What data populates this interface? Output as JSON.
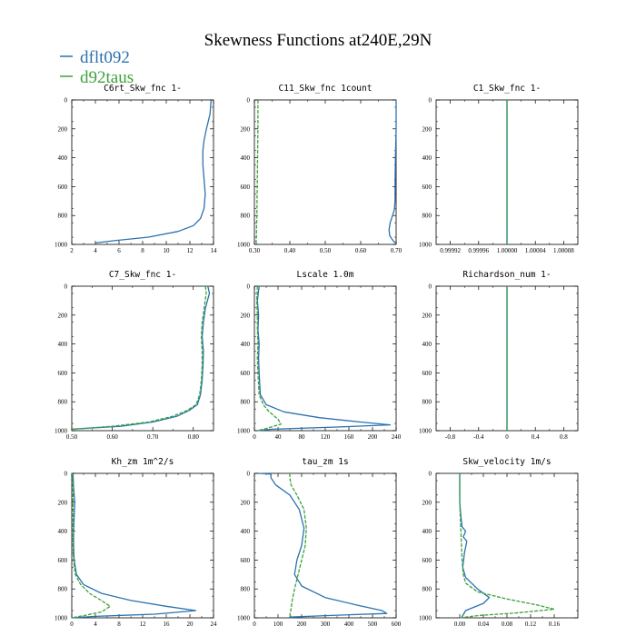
{
  "figure": {
    "title": "Skewness Functions at240E,29N",
    "legend": [
      {
        "label": "dflt092",
        "color": "#2b72b0"
      },
      {
        "label": "d92taus",
        "color": "#3aa23a"
      }
    ]
  },
  "chart_data": [
    {
      "type": "line",
      "title": "C6rt_Skw_fnc",
      "units": "1-",
      "xlim": [
        2,
        14
      ],
      "xticks": [
        2,
        4,
        6,
        8,
        10,
        12,
        14
      ],
      "ylim": [
        0,
        1000
      ],
      "yticks": [
        0,
        200,
        400,
        600,
        800,
        1000
      ],
      "series": [
        {
          "name": "dflt092",
          "x": [
            13.8,
            13.7,
            13.4,
            13.2,
            13.1,
            13.1,
            13.2,
            13.3,
            13.2,
            12.9,
            12.3,
            11.0,
            8.5,
            5.5,
            4.0
          ],
          "y": [
            0,
            100,
            200,
            280,
            350,
            450,
            550,
            650,
            750,
            820,
            870,
            910,
            950,
            975,
            990
          ]
        }
      ]
    },
    {
      "type": "line",
      "title": "C11_Skw_fnc",
      "units": "1count",
      "xlim": [
        0.3,
        0.7
      ],
      "xticks": [
        0.3,
        0.4,
        0.5,
        0.6,
        0.7
      ],
      "xtick_labels": [
        "0.30",
        "0.40",
        "0.50",
        "0.60",
        "0.70"
      ],
      "ylim": [
        0,
        1000
      ],
      "yticks": [
        0,
        200,
        400,
        600,
        800,
        1000
      ],
      "series": [
        {
          "name": "dflt092",
          "x": [
            0.7,
            0.7,
            0.698,
            0.697,
            0.697,
            0.695,
            0.69,
            0.683,
            0.68,
            0.682,
            0.69,
            0.698
          ],
          "y": [
            0,
            200,
            400,
            600,
            700,
            760,
            800,
            850,
            900,
            940,
            970,
            990
          ]
        },
        {
          "name": "d92taus",
          "x": [
            0.31,
            0.31,
            0.309,
            0.308,
            0.307,
            0.306,
            0.306,
            0.305,
            0.306
          ],
          "y": [
            0,
            200,
            400,
            600,
            800,
            900,
            950,
            975,
            1000
          ]
        }
      ]
    },
    {
      "type": "line",
      "title": "C1_Skw_fnc",
      "units": "1-",
      "xlim": [
        0.9999,
        1.0001
      ],
      "xticks": [
        0.99992,
        0.99996,
        1.0,
        1.00004,
        1.00008
      ],
      "xtick_labels": [
        "0.99992",
        "0.99996",
        "1.00000",
        "1.00004",
        "1.00008"
      ],
      "ylim": [
        0,
        1000
      ],
      "yticks": [
        0,
        200,
        400,
        600,
        800,
        1000
      ],
      "series": [
        {
          "name": "dflt092",
          "x": [
            1.0,
            1.0
          ],
          "y": [
            0,
            1000
          ]
        },
        {
          "name": "d92taus",
          "x": [
            1.0,
            1.0
          ],
          "y": [
            0,
            1000
          ]
        }
      ]
    },
    {
      "type": "line",
      "title": "C7_Skw_fnc",
      "units": "1-",
      "xlim": [
        0.5,
        0.85
      ],
      "xticks": [
        0.5,
        0.6,
        0.7,
        0.8
      ],
      "xtick_labels": [
        "0.50",
        "0.60",
        "0.70",
        "0.80"
      ],
      "ylim": [
        0,
        1000
      ],
      "yticks": [
        0,
        200,
        400,
        600,
        800,
        1000
      ],
      "series": [
        {
          "name": "dflt092",
          "x": [
            0.836,
            0.84,
            0.83,
            0.825,
            0.822,
            0.825,
            0.824,
            0.822,
            0.818,
            0.81,
            0.79,
            0.76,
            0.7,
            0.62,
            0.5
          ],
          "y": [
            0,
            50,
            150,
            250,
            350,
            450,
            550,
            650,
            750,
            820,
            860,
            900,
            940,
            970,
            990
          ]
        },
        {
          "name": "d92taus",
          "x": [
            0.83,
            0.832,
            0.827,
            0.822,
            0.82,
            0.822,
            0.822,
            0.82,
            0.816,
            0.807,
            0.785,
            0.75,
            0.69,
            0.6,
            0.5
          ],
          "y": [
            0,
            50,
            150,
            250,
            350,
            450,
            550,
            650,
            750,
            820,
            860,
            900,
            940,
            970,
            990
          ]
        }
      ]
    },
    {
      "type": "line",
      "title": "Lscale",
      "units": "1.0m",
      "xlim": [
        0,
        240
      ],
      "xticks": [
        0,
        40,
        80,
        120,
        160,
        200,
        240
      ],
      "ylim": [
        0,
        1000
      ],
      "yticks": [
        0,
        200,
        400,
        600,
        800,
        1000
      ],
      "series": [
        {
          "name": "dflt092",
          "x": [
            8,
            5,
            7,
            6,
            8,
            7,
            8,
            10,
            20,
            50,
            110,
            180,
            230,
            140,
            30,
            5
          ],
          "y": [
            0,
            100,
            200,
            300,
            400,
            500,
            600,
            750,
            820,
            870,
            910,
            940,
            960,
            975,
            990,
            1000
          ]
        },
        {
          "name": "d92taus",
          "x": [
            5,
            4,
            5,
            5,
            6,
            5,
            6,
            8,
            15,
            25,
            40,
            45,
            20,
            5
          ],
          "y": [
            0,
            100,
            200,
            300,
            400,
            500,
            600,
            750,
            820,
            870,
            920,
            955,
            985,
            1000
          ]
        }
      ]
    },
    {
      "type": "line",
      "title": "Richardson_num",
      "units": "1-",
      "xlim": [
        -1,
        1
      ],
      "xticks": [
        -0.8,
        -0.4,
        0,
        0.4,
        0.8
      ],
      "xtick_labels": [
        "-0.8",
        "-0.4",
        "0",
        "0.4",
        "0.8"
      ],
      "ylim": [
        0,
        1000
      ],
      "yticks": [
        0,
        200,
        400,
        600,
        800,
        1000
      ],
      "series": [
        {
          "name": "dflt092",
          "x": [
            0,
            0
          ],
          "y": [
            0,
            1000
          ]
        },
        {
          "name": "d92taus",
          "x": [
            0,
            0
          ],
          "y": [
            0,
            1000
          ]
        }
      ]
    },
    {
      "type": "line",
      "title": "Kh_zm",
      "units": "1m^2/s",
      "xlim": [
        0,
        24
      ],
      "xticks": [
        0,
        4,
        8,
        12,
        16,
        20,
        24
      ],
      "ylim": [
        0,
        1000
      ],
      "yticks": [
        0,
        200,
        400,
        600,
        800,
        1000
      ],
      "series": [
        {
          "name": "dflt092",
          "x": [
            0.2,
            0.3,
            0.5,
            0.4,
            0.3,
            0.3,
            0.4,
            0.8,
            2,
            5,
            10,
            16,
            21,
            14,
            4,
            0
          ],
          "y": [
            0,
            100,
            200,
            300,
            400,
            500,
            600,
            700,
            770,
            830,
            880,
            920,
            950,
            975,
            990,
            1000
          ]
        },
        {
          "name": "d92taus",
          "x": [
            0.1,
            0.2,
            0.2,
            0.2,
            0.2,
            0.2,
            0.3,
            0.6,
            1.5,
            3,
            5,
            6.5,
            5,
            2,
            0
          ],
          "y": [
            0,
            100,
            200,
            300,
            400,
            500,
            600,
            700,
            770,
            830,
            880,
            920,
            960,
            985,
            1000
          ]
        }
      ]
    },
    {
      "type": "line",
      "title": "tau_zm",
      "units": "1s",
      "xlim": [
        0,
        600
      ],
      "xticks": [
        0,
        100,
        200,
        300,
        400,
        500,
        600
      ],
      "ylim": [
        0,
        1000
      ],
      "yticks": [
        0,
        200,
        400,
        600,
        800,
        1000
      ],
      "series": [
        {
          "name": "dflt092",
          "x": [
            20,
            70,
            70,
            90,
            150,
            190,
            210,
            200,
            180,
            170,
            200,
            300,
            430,
            540,
            560,
            300,
            150
          ],
          "y": [
            0,
            5,
            30,
            80,
            150,
            250,
            380,
            500,
            600,
            700,
            780,
            860,
            910,
            950,
            970,
            985,
            995
          ]
        },
        {
          "name": "d92taus",
          "x": [
            150,
            150,
            155,
            180,
            210,
            220,
            215,
            200,
            185,
            170,
            160,
            155,
            150,
            160
          ],
          "y": [
            0,
            30,
            80,
            150,
            250,
            380,
            500,
            600,
            700,
            800,
            880,
            940,
            980,
            1000
          ]
        }
      ]
    },
    {
      "type": "line",
      "title": "Skw_velocity",
      "units": "1m/s",
      "xlim": [
        -0.04,
        0.2
      ],
      "xticks": [
        0,
        0.04,
        0.08,
        0.12,
        0.16
      ],
      "xtick_labels": [
        "0.00",
        "0.04",
        "0.08",
        "0.12",
        "0.16"
      ],
      "ylim": [
        0,
        1000
      ],
      "yticks": [
        0,
        200,
        400,
        600,
        800,
        1000
      ],
      "series": [
        {
          "name": "dflt092",
          "x": [
            0.0,
            0.0,
            0.002,
            0.004,
            0.01,
            0.006,
            0.012,
            0.008,
            0.005,
            0.01,
            0.03,
            0.05,
            0.04,
            0.01,
            0.003
          ],
          "y": [
            0,
            200,
            300,
            370,
            400,
            440,
            470,
            550,
            650,
            720,
            800,
            860,
            900,
            950,
            1000
          ]
        },
        {
          "name": "d92taus",
          "x": [
            0.0,
            0.0,
            0.001,
            0.002,
            0.003,
            0.004,
            0.006,
            0.01,
            0.03,
            0.08,
            0.13,
            0.16,
            0.1,
            0.03,
            0.0
          ],
          "y": [
            0,
            200,
            300,
            400,
            500,
            600,
            700,
            760,
            820,
            870,
            910,
            940,
            965,
            985,
            1000
          ]
        }
      ]
    }
  ]
}
